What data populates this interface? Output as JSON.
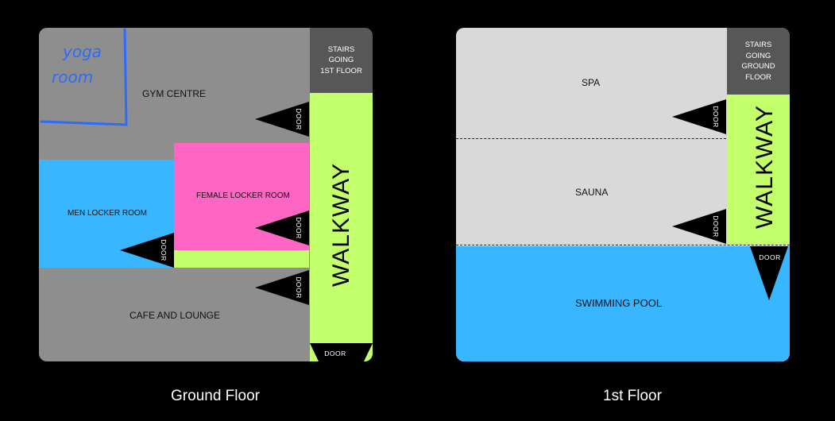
{
  "ground_floor": {
    "caption": "Ground Floor",
    "yoga_room": [
      "yoga",
      "room"
    ],
    "gym_centre": "GYM CENTRE",
    "female_locker_room": "FEMALE LOCKER ROOM",
    "men_locker_room": "MEN LOCKER ROOM",
    "cafe_lounge": "CAFE AND LOUNGE",
    "stairs": [
      "STAIRS",
      "GOING",
      "1ST FLOOR"
    ],
    "walkway": "WALKWAY",
    "door_label": "DOOR"
  },
  "first_floor": {
    "caption": "1st Floor",
    "spa": "SPA",
    "sauna": "SAUNA",
    "swimming_pool": "SWIMMING POOL",
    "stairs": [
      "STAIRS",
      "GOING",
      "GROUND",
      "FLOOR"
    ],
    "walkway": "WALKWAY",
    "door_label": "DOOR"
  },
  "colors": {
    "gray_room": "#8e8e8e",
    "light_room": "#d9d9d9",
    "pink_room": "#ff66c4",
    "blue_room": "#38b6ff",
    "walkway": "#c3ff6b",
    "stairs": "#575757"
  }
}
